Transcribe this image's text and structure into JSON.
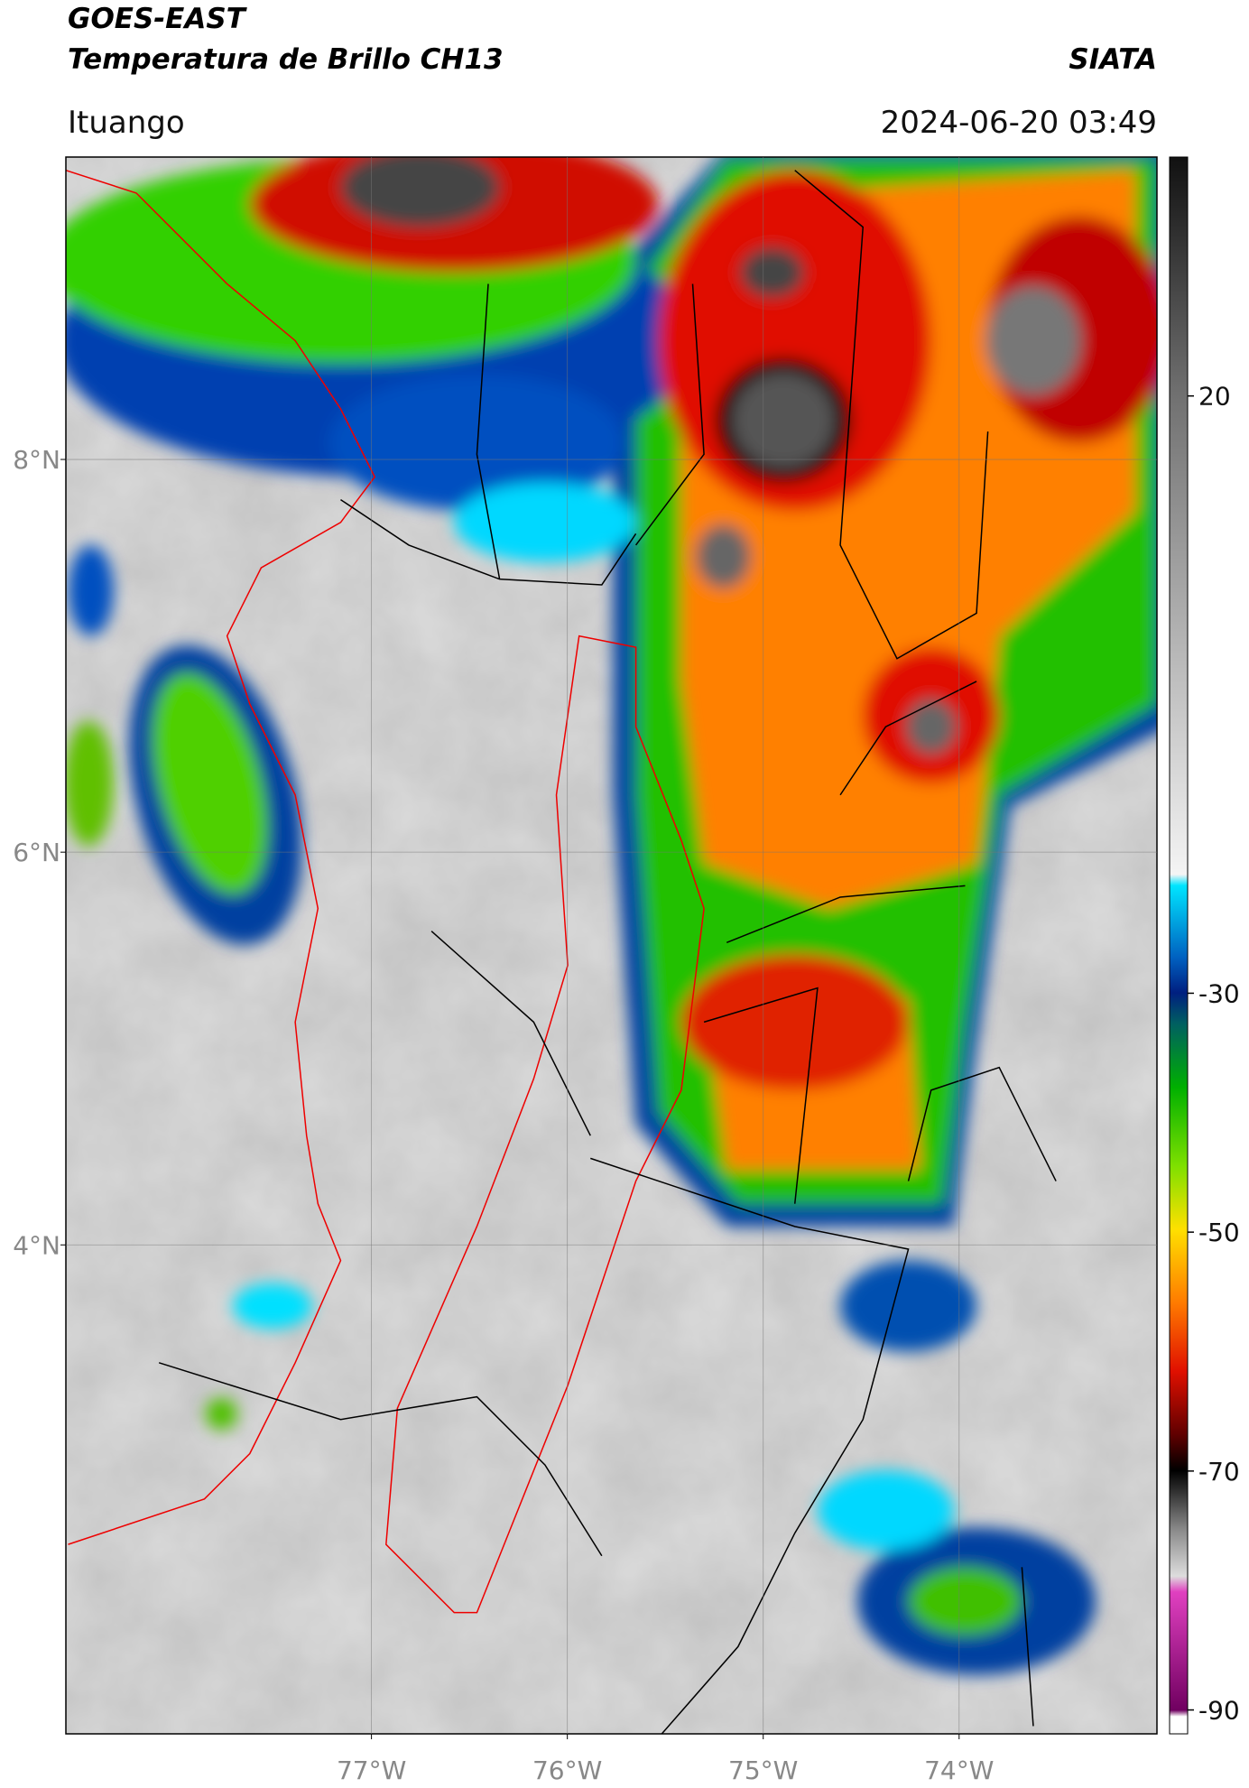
{
  "header": {
    "satellite": "GOES-EAST",
    "product": "Temperatura de Brillo CH13",
    "agency": "SIATA",
    "location": "Ituango",
    "timestamp": "2024-06-20 03:49"
  },
  "map": {
    "lat_range": [
      1.51,
      9.54
    ],
    "lon_range": [
      -78.56,
      -72.99
    ],
    "lat_ticks": [
      {
        "value": 4,
        "label": "4°N"
      },
      {
        "value": 6,
        "label": "6°N"
      },
      {
        "value": 8,
        "label": "8°N"
      }
    ],
    "lon_ticks": [
      {
        "value": -77,
        "label": "77°W"
      },
      {
        "value": -76,
        "label": "76°W"
      },
      {
        "value": -75,
        "label": "75°W"
      },
      {
        "value": -74,
        "label": "74°W"
      }
    ],
    "grid": true
  },
  "colorbar": {
    "range": [
      -92,
      40
    ],
    "ticks": [
      20,
      -30,
      -50,
      -70,
      -90
    ]
  }
}
